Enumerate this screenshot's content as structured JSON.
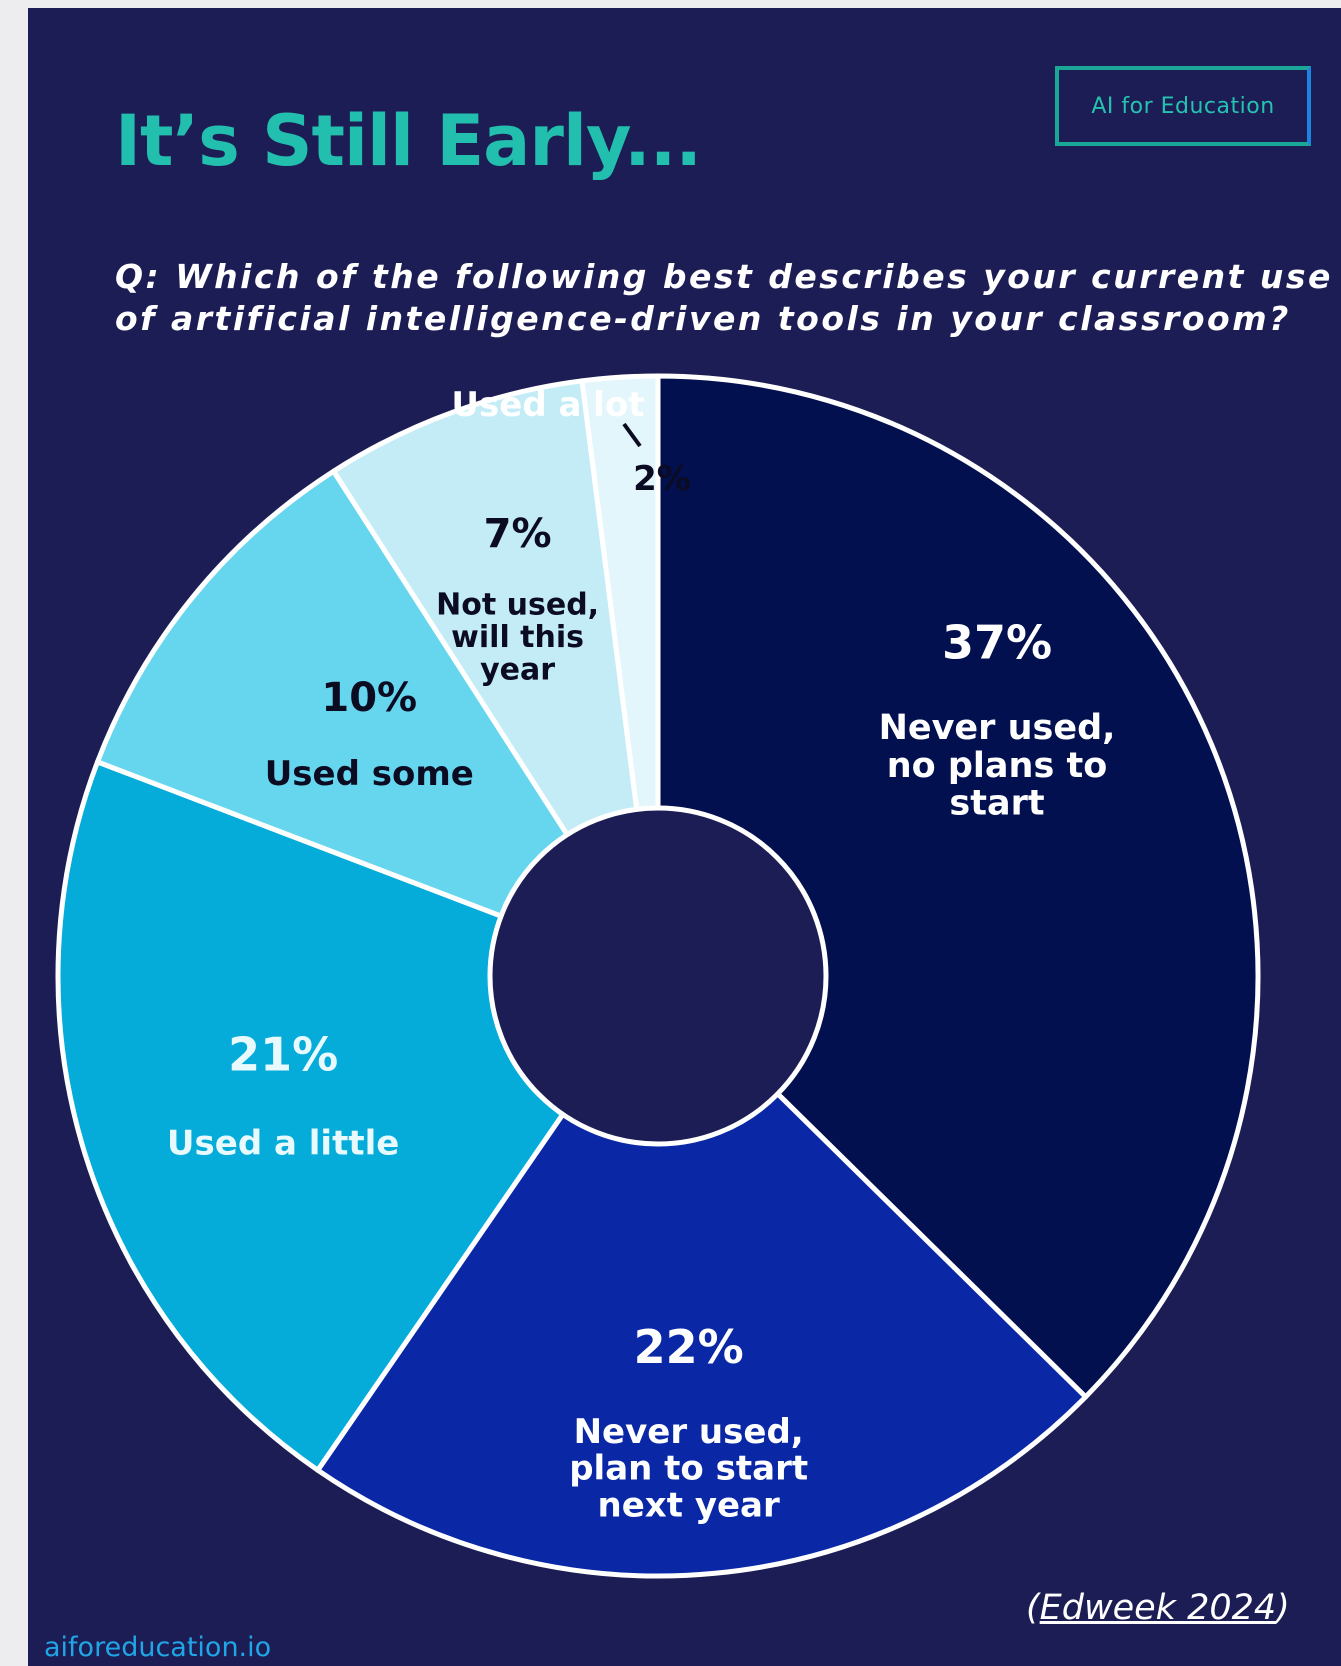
{
  "header": {
    "title": "It’s Still Early...",
    "brand": "AI for Education",
    "question_line1": "Q: Which of the following best describes your current use",
    "question_line2": "of artificial intelligence-driven tools in your classroom?"
  },
  "footer": {
    "site": "aiforeducation.io",
    "source_open": "(",
    "source_text": "Edweek 2024",
    "source_close": ")"
  },
  "colors": {
    "background": "#1d1d55",
    "title": "#22bfae",
    "site": "#1fa6e6"
  },
  "chart_data": {
    "type": "pie",
    "donut": true,
    "categories": [
      "Never used, no plans to start",
      "Never used, plan to start next year",
      "Used a little",
      "Used some",
      "Not used, will this year",
      "Used a lot"
    ],
    "values": [
      37,
      22,
      21,
      10,
      7,
      2
    ],
    "value_labels": [
      "37%",
      "22%",
      "21%",
      "10%",
      "7%",
      "2%"
    ],
    "label_lines": [
      [
        "Never used,",
        "no plans to",
        "start"
      ],
      [
        "Never used,",
        "plan to start",
        "next year"
      ],
      [
        "Used a little"
      ],
      [
        "Used some"
      ],
      [
        "Not used,",
        "will this",
        "year"
      ],
      [
        "Used a lot"
      ]
    ],
    "colors": [
      "#03104f",
      "#0a28a6",
      "#05acd9",
      "#66d6ef",
      "#c4ecf7",
      "#e3f6fb"
    ],
    "label_colors": [
      "#ffffff",
      "#ffffff",
      "#e9faff",
      "#0b0b22",
      "#0b0b22",
      "#ffffff"
    ],
    "start": "top",
    "direction": "clockwise"
  }
}
